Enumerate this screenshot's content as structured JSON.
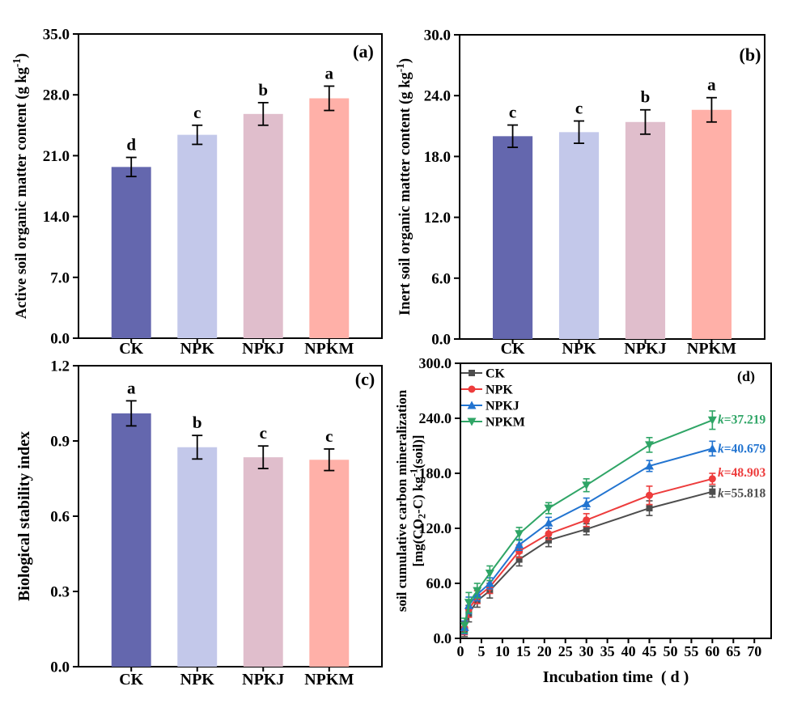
{
  "figure": {
    "background": "#ffffff",
    "treatments": [
      "CK",
      "NPK",
      "NPKJ",
      "NPKM"
    ],
    "bar_colors": [
      "#6467ae",
      "#c3c8ea",
      "#e0becc",
      "#ffb0a8"
    ],
    "series_colors": {
      "CK": "#4d4d4d",
      "NPK": "#ed3c3c",
      "NPKJ": "#2274d0",
      "NPKM": "#2fa566"
    }
  },
  "chart_data": [
    {
      "id": "a",
      "panel_label": "(a)",
      "type": "bar",
      "ylabel": "Active soil organic matter content (g kg^{-1})",
      "categories": [
        "CK",
        "NPK",
        "NPKJ",
        "NPKM"
      ],
      "values": [
        19.7,
        23.4,
        25.8,
        27.6
      ],
      "errors": [
        1.1,
        1.1,
        1.3,
        1.4
      ],
      "sig_letters": [
        "d",
        "c",
        "b",
        "a"
      ],
      "bar_colors": [
        "#6467ae",
        "#c3c8ea",
        "#e0becc",
        "#ffb0a8"
      ],
      "ylim": [
        0,
        35
      ],
      "yticks": [
        0,
        7,
        14,
        21,
        28,
        35
      ],
      "ytick_decimals": 1,
      "grid": false
    },
    {
      "id": "b",
      "panel_label": "(b)",
      "type": "bar",
      "ylabel": "Inert soil organic matter content (g kg^{-1})",
      "categories": [
        "CK",
        "NPK",
        "NPKJ",
        "NPKM"
      ],
      "values": [
        20.0,
        20.4,
        21.4,
        22.6
      ],
      "errors": [
        1.1,
        1.1,
        1.2,
        1.2
      ],
      "sig_letters": [
        "c",
        "c",
        "b",
        "a"
      ],
      "bar_colors": [
        "#6467ae",
        "#c3c8ea",
        "#e0becc",
        "#ffb0a8"
      ],
      "ylim": [
        0,
        30
      ],
      "yticks": [
        0,
        6,
        12,
        18,
        24,
        30
      ],
      "ytick_decimals": 1,
      "grid": false
    },
    {
      "id": "c",
      "panel_label": "(c)",
      "type": "bar",
      "ylabel": "Biological stability index",
      "categories": [
        "CK",
        "NPK",
        "NPKJ",
        "NPKM"
      ],
      "values": [
        1.01,
        0.875,
        0.835,
        0.825
      ],
      "errors": [
        0.05,
        0.047,
        0.045,
        0.043
      ],
      "sig_letters": [
        "a",
        "b",
        "c",
        "c"
      ],
      "bar_colors": [
        "#6467ae",
        "#c3c8ea",
        "#e0becc",
        "#ffb0a8"
      ],
      "ylim": [
        0,
        1.2
      ],
      "yticks": [
        0,
        0.3,
        0.6,
        0.9,
        1.2
      ],
      "ytick_decimals": 1,
      "grid": false
    },
    {
      "id": "d",
      "panel_label": "(d)",
      "type": "line",
      "xlabel": "Incubation time  ( d )",
      "ylabel_lines": [
        "soil cumulative carbon mineralization",
        "[mg(CO_{2}-C) kg^{-1}(soil)]"
      ],
      "x": [
        1,
        2,
        4,
        7,
        14,
        21,
        30,
        45,
        60
      ],
      "xlim": [
        0,
        74
      ],
      "xticks": [
        0,
        5,
        10,
        15,
        20,
        25,
        30,
        35,
        40,
        45,
        50,
        55,
        60,
        65,
        70
      ],
      "ylim": [
        0,
        300
      ],
      "yticks": [
        0,
        60,
        120,
        180,
        240,
        300
      ],
      "ytick_decimals": 1,
      "grid": false,
      "legend_position": "top-left-inside",
      "series": [
        {
          "name": "CK",
          "color": "#4d4d4d",
          "marker": "square",
          "values": [
            10,
            27,
            41,
            52,
            86,
            107,
            119,
            142,
            160
          ],
          "errors": [
            8,
            9,
            7,
            8,
            7,
            7,
            6,
            8,
            6
          ],
          "k_annotation": "k=55.818"
        },
        {
          "name": "NPK",
          "color": "#ed3c3c",
          "marker": "circle",
          "values": [
            11,
            32,
            45,
            56,
            95,
            114,
            129,
            156,
            174
          ],
          "errors": [
            7,
            9,
            7,
            7,
            7,
            6,
            7,
            10,
            6
          ],
          "k_annotation": "k=48.903"
        },
        {
          "name": "NPKJ",
          "color": "#2274d0",
          "marker": "triangle-up",
          "values": [
            12,
            36,
            48,
            60,
            102,
            126,
            147,
            188,
            207
          ],
          "errors": [
            7,
            9,
            7,
            6,
            6,
            6,
            6,
            6,
            8
          ],
          "k_annotation": "k=40.679"
        },
        {
          "name": "NPKM",
          "color": "#2fa566",
          "marker": "triangle-down",
          "values": [
            14,
            39,
            52,
            71,
            114,
            142,
            167,
            211,
            238
          ],
          "errors": [
            8,
            11,
            8,
            8,
            7,
            6,
            7,
            8,
            10
          ],
          "k_annotation": "k=37.219"
        }
      ]
    }
  ]
}
